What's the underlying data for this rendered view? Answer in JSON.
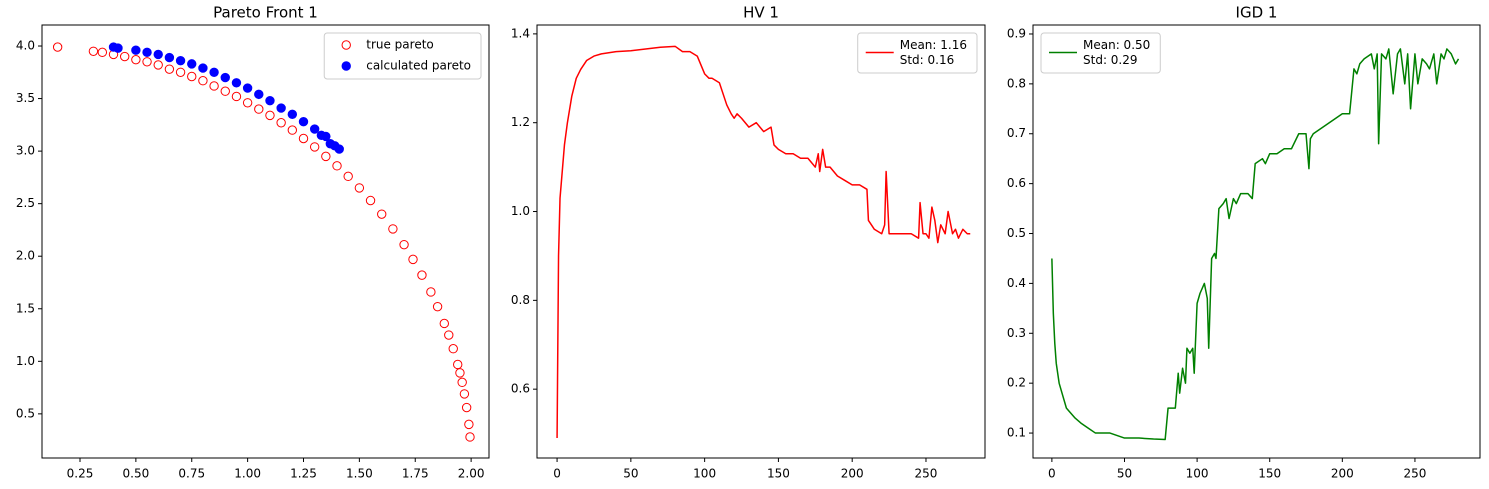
{
  "chart_data": [
    {
      "type": "scatter",
      "title": "Pareto Front 1",
      "xlim": [
        0.08,
        2.08
      ],
      "ylim": [
        0.08,
        4.2
      ],
      "xticks": [
        0.25,
        {
          "value": 0.5,
          "label": "0.50"
        },
        0.75,
        {
          "value": 1.0,
          "label": "1.00"
        },
        1.25,
        {
          "value": 1.5,
          "label": "1.50"
        },
        1.75,
        {
          "value": 2.0,
          "label": "2.00"
        }
      ],
      "yticks": [
        0.5,
        {
          "value": 1.0,
          "label": "1.0"
        },
        1.5,
        {
          "value": 2.0,
          "label": "2.0"
        },
        2.5,
        {
          "value": 3.0,
          "label": "3.0"
        },
        3.5,
        {
          "value": 4.0,
          "label": "4.0"
        }
      ],
      "legend": "upper right",
      "series": [
        {
          "name": "true pareto",
          "color": "#ff0000",
          "filled": false,
          "x": [
            0.15,
            0.31,
            0.35,
            0.4,
            0.45,
            0.5,
            0.55,
            0.6,
            0.65,
            0.7,
            0.75,
            0.8,
            0.85,
            0.9,
            0.95,
            1.0,
            1.05,
            1.1,
            1.15,
            1.2,
            1.25,
            1.3,
            1.35,
            1.4,
            1.45,
            1.5,
            1.55,
            1.6,
            1.65,
            1.7,
            1.74,
            1.78,
            1.82,
            1.85,
            1.88,
            1.9,
            1.92,
            1.94,
            1.95,
            1.96,
            1.97,
            1.98,
            1.99,
            1.995
          ],
          "values": [
            3.99,
            3.95,
            3.94,
            3.92,
            3.9,
            3.87,
            3.85,
            3.82,
            3.78,
            3.75,
            3.71,
            3.67,
            3.62,
            3.57,
            3.52,
            3.46,
            3.4,
            3.34,
            3.27,
            3.2,
            3.12,
            3.04,
            2.95,
            2.86,
            2.76,
            2.65,
            2.53,
            2.4,
            2.26,
            2.11,
            1.97,
            1.82,
            1.66,
            1.52,
            1.36,
            1.25,
            1.12,
            0.97,
            0.89,
            0.8,
            0.69,
            0.56,
            0.4,
            0.28
          ]
        },
        {
          "name": "calculated pareto",
          "color": "#0000ff",
          "filled": true,
          "x": [
            0.4,
            0.42,
            0.5,
            0.55,
            0.6,
            0.65,
            0.7,
            0.75,
            0.8,
            0.85,
            0.9,
            0.95,
            1.0,
            1.05,
            1.1,
            1.15,
            1.2,
            1.25,
            1.3,
            1.33,
            1.35,
            1.37,
            1.39,
            1.41
          ],
          "values": [
            3.99,
            3.98,
            3.96,
            3.94,
            3.92,
            3.89,
            3.86,
            3.83,
            3.79,
            3.75,
            3.7,
            3.65,
            3.6,
            3.54,
            3.48,
            3.41,
            3.35,
            3.28,
            3.21,
            3.15,
            3.14,
            3.07,
            3.05,
            3.02
          ]
        }
      ]
    },
    {
      "type": "line",
      "title": "HV 1",
      "xlim": [
        -13.6,
        290
      ],
      "ylim": [
        0.445,
        1.42
      ],
      "xticks": [
        0,
        50,
        100,
        150,
        200,
        250
      ],
      "yticks": [
        0.6,
        0.8,
        {
          "value": 1.0,
          "label": "1.0"
        },
        1.2,
        1.4
      ],
      "legend": "upper right",
      "x": [
        0,
        1,
        2,
        3,
        5,
        7,
        10,
        13,
        16,
        20,
        25,
        30,
        40,
        50,
        60,
        70,
        80,
        85,
        90,
        95,
        100,
        103,
        105,
        110,
        115,
        118,
        120,
        122,
        125,
        130,
        135,
        140,
        145,
        147,
        150,
        155,
        160,
        165,
        170,
        175,
        177,
        178,
        180,
        182,
        185,
        190,
        195,
        200,
        205,
        210,
        211,
        213,
        215,
        220,
        222,
        223,
        225,
        230,
        235,
        240,
        245,
        246,
        248,
        250,
        252,
        254,
        256,
        258,
        260,
        263,
        265,
        268,
        270,
        272,
        275,
        278,
        280
      ],
      "series": [
        {
          "name": "Mean: 1.16\nStd: 0.16",
          "color": "#ff0000",
          "values": [
            0.49,
            0.9,
            1.03,
            1.07,
            1.15,
            1.2,
            1.26,
            1.3,
            1.32,
            1.34,
            1.35,
            1.355,
            1.36,
            1.362,
            1.366,
            1.37,
            1.372,
            1.36,
            1.36,
            1.35,
            1.31,
            1.3,
            1.3,
            1.29,
            1.24,
            1.22,
            1.21,
            1.22,
            1.21,
            1.19,
            1.2,
            1.18,
            1.19,
            1.15,
            1.14,
            1.13,
            1.13,
            1.12,
            1.12,
            1.1,
            1.13,
            1.09,
            1.14,
            1.1,
            1.1,
            1.08,
            1.07,
            1.06,
            1.06,
            1.05,
            0.98,
            0.97,
            0.96,
            0.95,
            0.97,
            1.09,
            0.95,
            0.95,
            0.95,
            0.95,
            0.94,
            1.02,
            0.95,
            0.95,
            0.94,
            1.01,
            0.98,
            0.93,
            0.97,
            0.95,
            1.0,
            0.95,
            0.96,
            0.94,
            0.96,
            0.95,
            0.95
          ]
        }
      ]
    },
    {
      "type": "line",
      "title": "IGD 1",
      "xlim": [
        -13,
        294.8
      ],
      "ylim": [
        0.05,
        0.918
      ],
      "xticks": [
        0,
        50,
        100,
        150,
        200,
        250
      ],
      "yticks": [
        0.1,
        0.2,
        0.3,
        0.4,
        0.5,
        0.6,
        0.7,
        0.8,
        0.9
      ],
      "legend": "upper left",
      "x": [
        0,
        1,
        2,
        3,
        5,
        7,
        10,
        13,
        16,
        20,
        25,
        30,
        40,
        50,
        60,
        70,
        78,
        80,
        82,
        85,
        87,
        88,
        90,
        92,
        93,
        95,
        97,
        98,
        100,
        102,
        105,
        107,
        108,
        110,
        112,
        113,
        115,
        118,
        120,
        122,
        125,
        127,
        130,
        135,
        138,
        140,
        145,
        147,
        150,
        155,
        160,
        165,
        170,
        175,
        177,
        178,
        180,
        185,
        190,
        195,
        200,
        205,
        208,
        210,
        212,
        215,
        220,
        222,
        224,
        225,
        227,
        230,
        232,
        235,
        238,
        240,
        243,
        245,
        247,
        250,
        252,
        255,
        258,
        260,
        263,
        265,
        268,
        270,
        272,
        275,
        278,
        280
      ],
      "series": [
        {
          "name": "Mean: 0.50\nStd: 0.29",
          "color": "#008000",
          "values": [
            0.45,
            0.34,
            0.28,
            0.24,
            0.2,
            0.18,
            0.15,
            0.14,
            0.13,
            0.12,
            0.11,
            0.1,
            0.1,
            0.09,
            0.09,
            0.088,
            0.087,
            0.15,
            0.15,
            0.15,
            0.22,
            0.18,
            0.23,
            0.2,
            0.27,
            0.26,
            0.27,
            0.22,
            0.36,
            0.38,
            0.4,
            0.37,
            0.27,
            0.45,
            0.46,
            0.45,
            0.55,
            0.56,
            0.57,
            0.53,
            0.57,
            0.56,
            0.58,
            0.58,
            0.57,
            0.64,
            0.65,
            0.64,
            0.66,
            0.66,
            0.67,
            0.67,
            0.7,
            0.7,
            0.63,
            0.69,
            0.7,
            0.71,
            0.72,
            0.73,
            0.74,
            0.74,
            0.83,
            0.82,
            0.84,
            0.85,
            0.86,
            0.83,
            0.86,
            0.68,
            0.86,
            0.85,
            0.87,
            0.78,
            0.86,
            0.87,
            0.8,
            0.86,
            0.75,
            0.86,
            0.8,
            0.85,
            0.84,
            0.83,
            0.86,
            0.8,
            0.86,
            0.85,
            0.87,
            0.86,
            0.84,
            0.85
          ]
        }
      ]
    }
  ]
}
